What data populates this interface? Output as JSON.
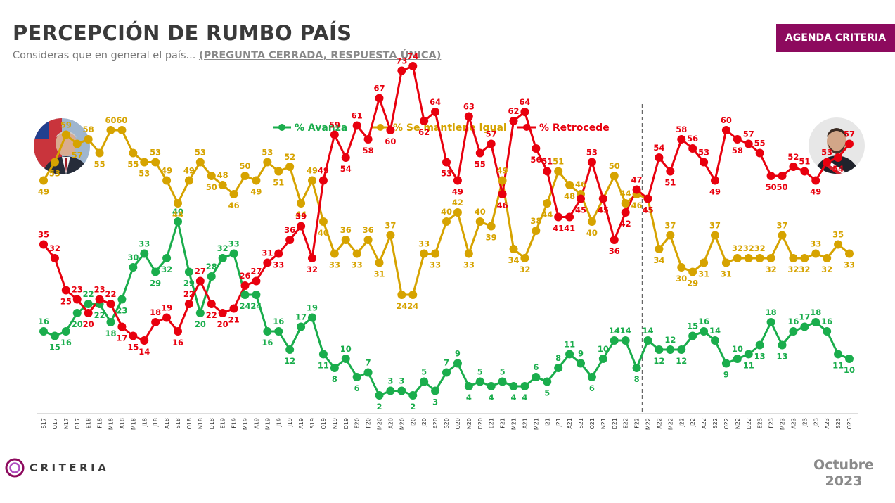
{
  "header": {
    "title": "PERCEPCIÓN DE RUMBO PAÍS",
    "subtitle_lead": "Consideras que en general el país... ",
    "subtitle_emph": "(PREGUNTA CERRADA, RESPUESTA ÚNICA)",
    "badge": "AGENDA CRITERIA"
  },
  "footer": {
    "logo_text": "CRITERIA",
    "month": "Octubre",
    "year": "2023"
  },
  "avatars": {
    "left": "portrait-icon",
    "right": "portrait-icon"
  },
  "colors": {
    "avanza": "#1aad4c",
    "igual": "#d6a300",
    "retrocede": "#e8000e",
    "brand": "#8d0a5e"
  },
  "chart_data": {
    "type": "line",
    "divider_after_category": "F22",
    "categories": [
      "S17",
      "O17",
      "N17",
      "D17",
      "E18",
      "F18",
      "M18",
      "A18",
      "M18",
      "J18",
      "J18",
      "A18",
      "S18",
      "O18",
      "N18",
      "D18",
      "E19",
      "F19",
      "M19",
      "A19",
      "M19",
      "J19",
      "J19",
      "A19",
      "S19",
      "O19",
      "N19",
      "D19",
      "E20",
      "F20",
      "M20",
      "A20",
      "M20",
      "J20",
      "J20",
      "A20",
      "S20",
      "O20",
      "N20",
      "D20",
      "E21",
      "F21",
      "M21",
      "A21",
      "M21",
      "J21",
      "J21",
      "A21",
      "S21",
      "O21",
      "N21",
      "D21",
      "E22",
      "F22",
      "M22",
      "A22",
      "M22",
      "J22",
      "J22",
      "A22",
      "S22",
      "O22",
      "N22",
      "D22",
      "E23",
      "F23",
      "M23",
      "A23",
      "J23",
      "J23",
      "A23",
      "S23",
      "O23"
    ],
    "series": [
      {
        "name": "% Avanza",
        "color": "#1aad4c",
        "values": [
          16,
          15,
          16,
          20,
          22,
          22,
          18,
          23,
          30,
          33,
          29,
          32,
          40,
          29,
          20,
          28,
          32,
          33,
          24,
          24,
          16,
          16,
          12,
          17,
          19,
          11,
          8,
          10,
          6,
          7,
          2,
          3,
          3,
          2,
          5,
          3,
          7,
          9,
          4,
          5,
          4,
          5,
          4,
          4,
          6,
          5,
          8,
          11,
          9,
          6,
          10,
          14,
          14,
          8,
          14,
          12,
          12,
          12,
          15,
          16,
          14,
          9,
          10,
          11,
          13,
          18,
          13,
          16,
          17,
          18,
          16,
          11,
          10
        ]
      },
      {
        "name": "% Se mantiene igual",
        "color": "#d6a300",
        "values": [
          49,
          53,
          59,
          57,
          58,
          55,
          60,
          60,
          55,
          53,
          53,
          49,
          44,
          49,
          53,
          50,
          48,
          46,
          50,
          49,
          53,
          51,
          52,
          44,
          49,
          40,
          33,
          36,
          33,
          36,
          31,
          37,
          24,
          24,
          33,
          33,
          40,
          42,
          33,
          40,
          39,
          49,
          34,
          32,
          38,
          44,
          51,
          48,
          46,
          40,
          45,
          50,
          44,
          46,
          45,
          34,
          37,
          30,
          29,
          31,
          37,
          31,
          32,
          32,
          32,
          32,
          37,
          32,
          32,
          33,
          32,
          35,
          33
        ]
      },
      {
        "name": "% Retrocede",
        "color": "#e8000e",
        "values": [
          35,
          32,
          25,
          23,
          20,
          23,
          22,
          17,
          15,
          14,
          18,
          19,
          16,
          22,
          27,
          22,
          20,
          21,
          26,
          27,
          31,
          33,
          36,
          39,
          32,
          49,
          59,
          54,
          61,
          58,
          67,
          60,
          73,
          74,
          62,
          64,
          53,
          49,
          63,
          55,
          57,
          46,
          62,
          64,
          56,
          51,
          41,
          41,
          45,
          53,
          45,
          36,
          42,
          47,
          45,
          54,
          51,
          58,
          56,
          53,
          49,
          60,
          58,
          57,
          55,
          50,
          50,
          52,
          51,
          49,
          53,
          54,
          57
        ]
      }
    ],
    "ylim": [
      0,
      80
    ],
    "xlabel": "",
    "ylabel": "",
    "legend_position": "top-center"
  }
}
